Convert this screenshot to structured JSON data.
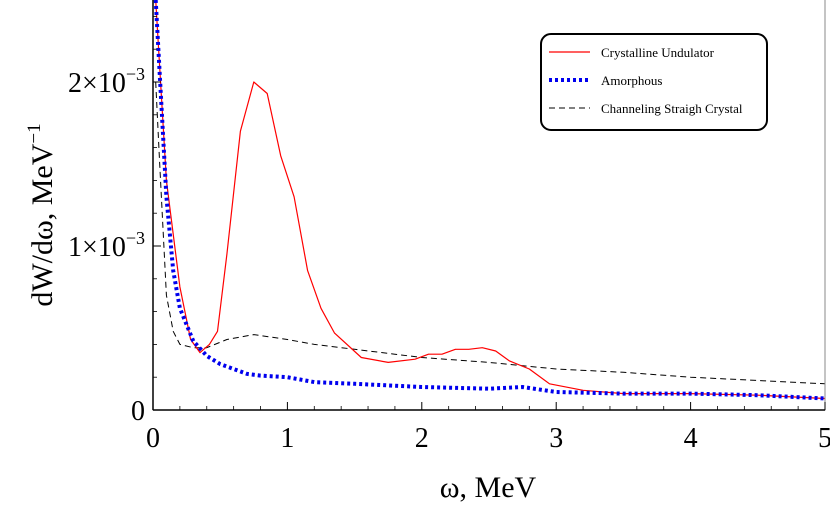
{
  "chart_data": {
    "type": "line",
    "xlabel": "ω, MeV",
    "ylabel": "dW/dω, MeV",
    "ylabel_exponent": "−1",
    "xlim": [
      0,
      5
    ],
    "ylim": [
      0,
      0.0025
    ],
    "x_ticks": [
      {
        "value": 0,
        "label": "0"
      },
      {
        "value": 1,
        "label": "1"
      },
      {
        "value": 2,
        "label": "2"
      },
      {
        "value": 3,
        "label": "3"
      },
      {
        "value": 4,
        "label": "4"
      },
      {
        "value": 5,
        "label": "5"
      }
    ],
    "y_ticks": [
      {
        "value": 0,
        "label": "0",
        "exponent": ""
      },
      {
        "value": 0.001,
        "label": "1×10",
        "exponent": "−3"
      },
      {
        "value": 0.002,
        "label": "2×10",
        "exponent": "−3"
      }
    ],
    "legend_position": "top-right",
    "grid": false,
    "series": [
      {
        "name": "Crystalline Undulator",
        "color": "#ff0000",
        "style": "solid",
        "points": [
          [
            0.02,
            0.0025
          ],
          [
            0.1,
            0.0014
          ],
          [
            0.2,
            0.00075
          ],
          [
            0.28,
            0.00043
          ],
          [
            0.35,
            0.00035
          ],
          [
            0.42,
            0.0004
          ],
          [
            0.48,
            0.00048
          ],
          [
            0.55,
            0.00095
          ],
          [
            0.65,
            0.0017
          ],
          [
            0.75,
            0.002
          ],
          [
            0.85,
            0.00193
          ],
          [
            0.95,
            0.00155
          ],
          [
            1.05,
            0.0013
          ],
          [
            1.15,
            0.00085
          ],
          [
            1.25,
            0.00062
          ],
          [
            1.35,
            0.00047
          ],
          [
            1.55,
            0.00032
          ],
          [
            1.75,
            0.00029
          ],
          [
            1.95,
            0.00031
          ],
          [
            2.05,
            0.00034
          ],
          [
            2.15,
            0.00034
          ],
          [
            2.25,
            0.00037
          ],
          [
            2.35,
            0.00037
          ],
          [
            2.45,
            0.00038
          ],
          [
            2.55,
            0.00036
          ],
          [
            2.65,
            0.0003
          ],
          [
            2.8,
            0.00025
          ],
          [
            2.95,
            0.00016
          ],
          [
            3.2,
            0.00012
          ],
          [
            3.5,
            0.0001
          ],
          [
            4.0,
            0.0001
          ],
          [
            4.5,
            9e-05
          ],
          [
            5.0,
            7e-05
          ]
        ]
      },
      {
        "name": "Amorphous",
        "color": "#0000ee",
        "style": "dotted-thick",
        "points": [
          [
            0.02,
            0.0025
          ],
          [
            0.1,
            0.0013
          ],
          [
            0.15,
            0.00085
          ],
          [
            0.2,
            0.00062
          ],
          [
            0.3,
            0.00042
          ],
          [
            0.4,
            0.00033
          ],
          [
            0.5,
            0.00028
          ],
          [
            0.6,
            0.00025
          ],
          [
            0.7,
            0.00022
          ],
          [
            0.8,
            0.00021
          ],
          [
            1.0,
            0.0002
          ],
          [
            1.2,
            0.00017
          ],
          [
            1.5,
            0.00016
          ],
          [
            2.0,
            0.00014
          ],
          [
            2.5,
            0.00013
          ],
          [
            2.75,
            0.00014
          ],
          [
            3.0,
            0.00011
          ],
          [
            3.5,
            0.0001
          ],
          [
            4.0,
            0.0001
          ],
          [
            4.5,
            9e-05
          ],
          [
            5.0,
            7e-05
          ]
        ]
      },
      {
        "name": "Channeling Straigh Crystal",
        "color": "#000000",
        "style": "dashed",
        "points": [
          [
            0.02,
            0.002
          ],
          [
            0.05,
            0.0015
          ],
          [
            0.1,
            0.0007
          ],
          [
            0.15,
            0.00048
          ],
          [
            0.2,
            0.0004
          ],
          [
            0.3,
            0.00038
          ],
          [
            0.4,
            0.00038
          ],
          [
            0.55,
            0.00043
          ],
          [
            0.75,
            0.00046
          ],
          [
            1.0,
            0.00043
          ],
          [
            1.2,
            0.0004
          ],
          [
            1.5,
            0.00037
          ],
          [
            1.8,
            0.00034
          ],
          [
            2.0,
            0.00032
          ],
          [
            2.5,
            0.00029
          ],
          [
            3.0,
            0.00025
          ],
          [
            3.5,
            0.00023
          ],
          [
            4.0,
            0.0002
          ],
          [
            4.5,
            0.00018
          ],
          [
            5.0,
            0.00016
          ]
        ]
      }
    ]
  }
}
